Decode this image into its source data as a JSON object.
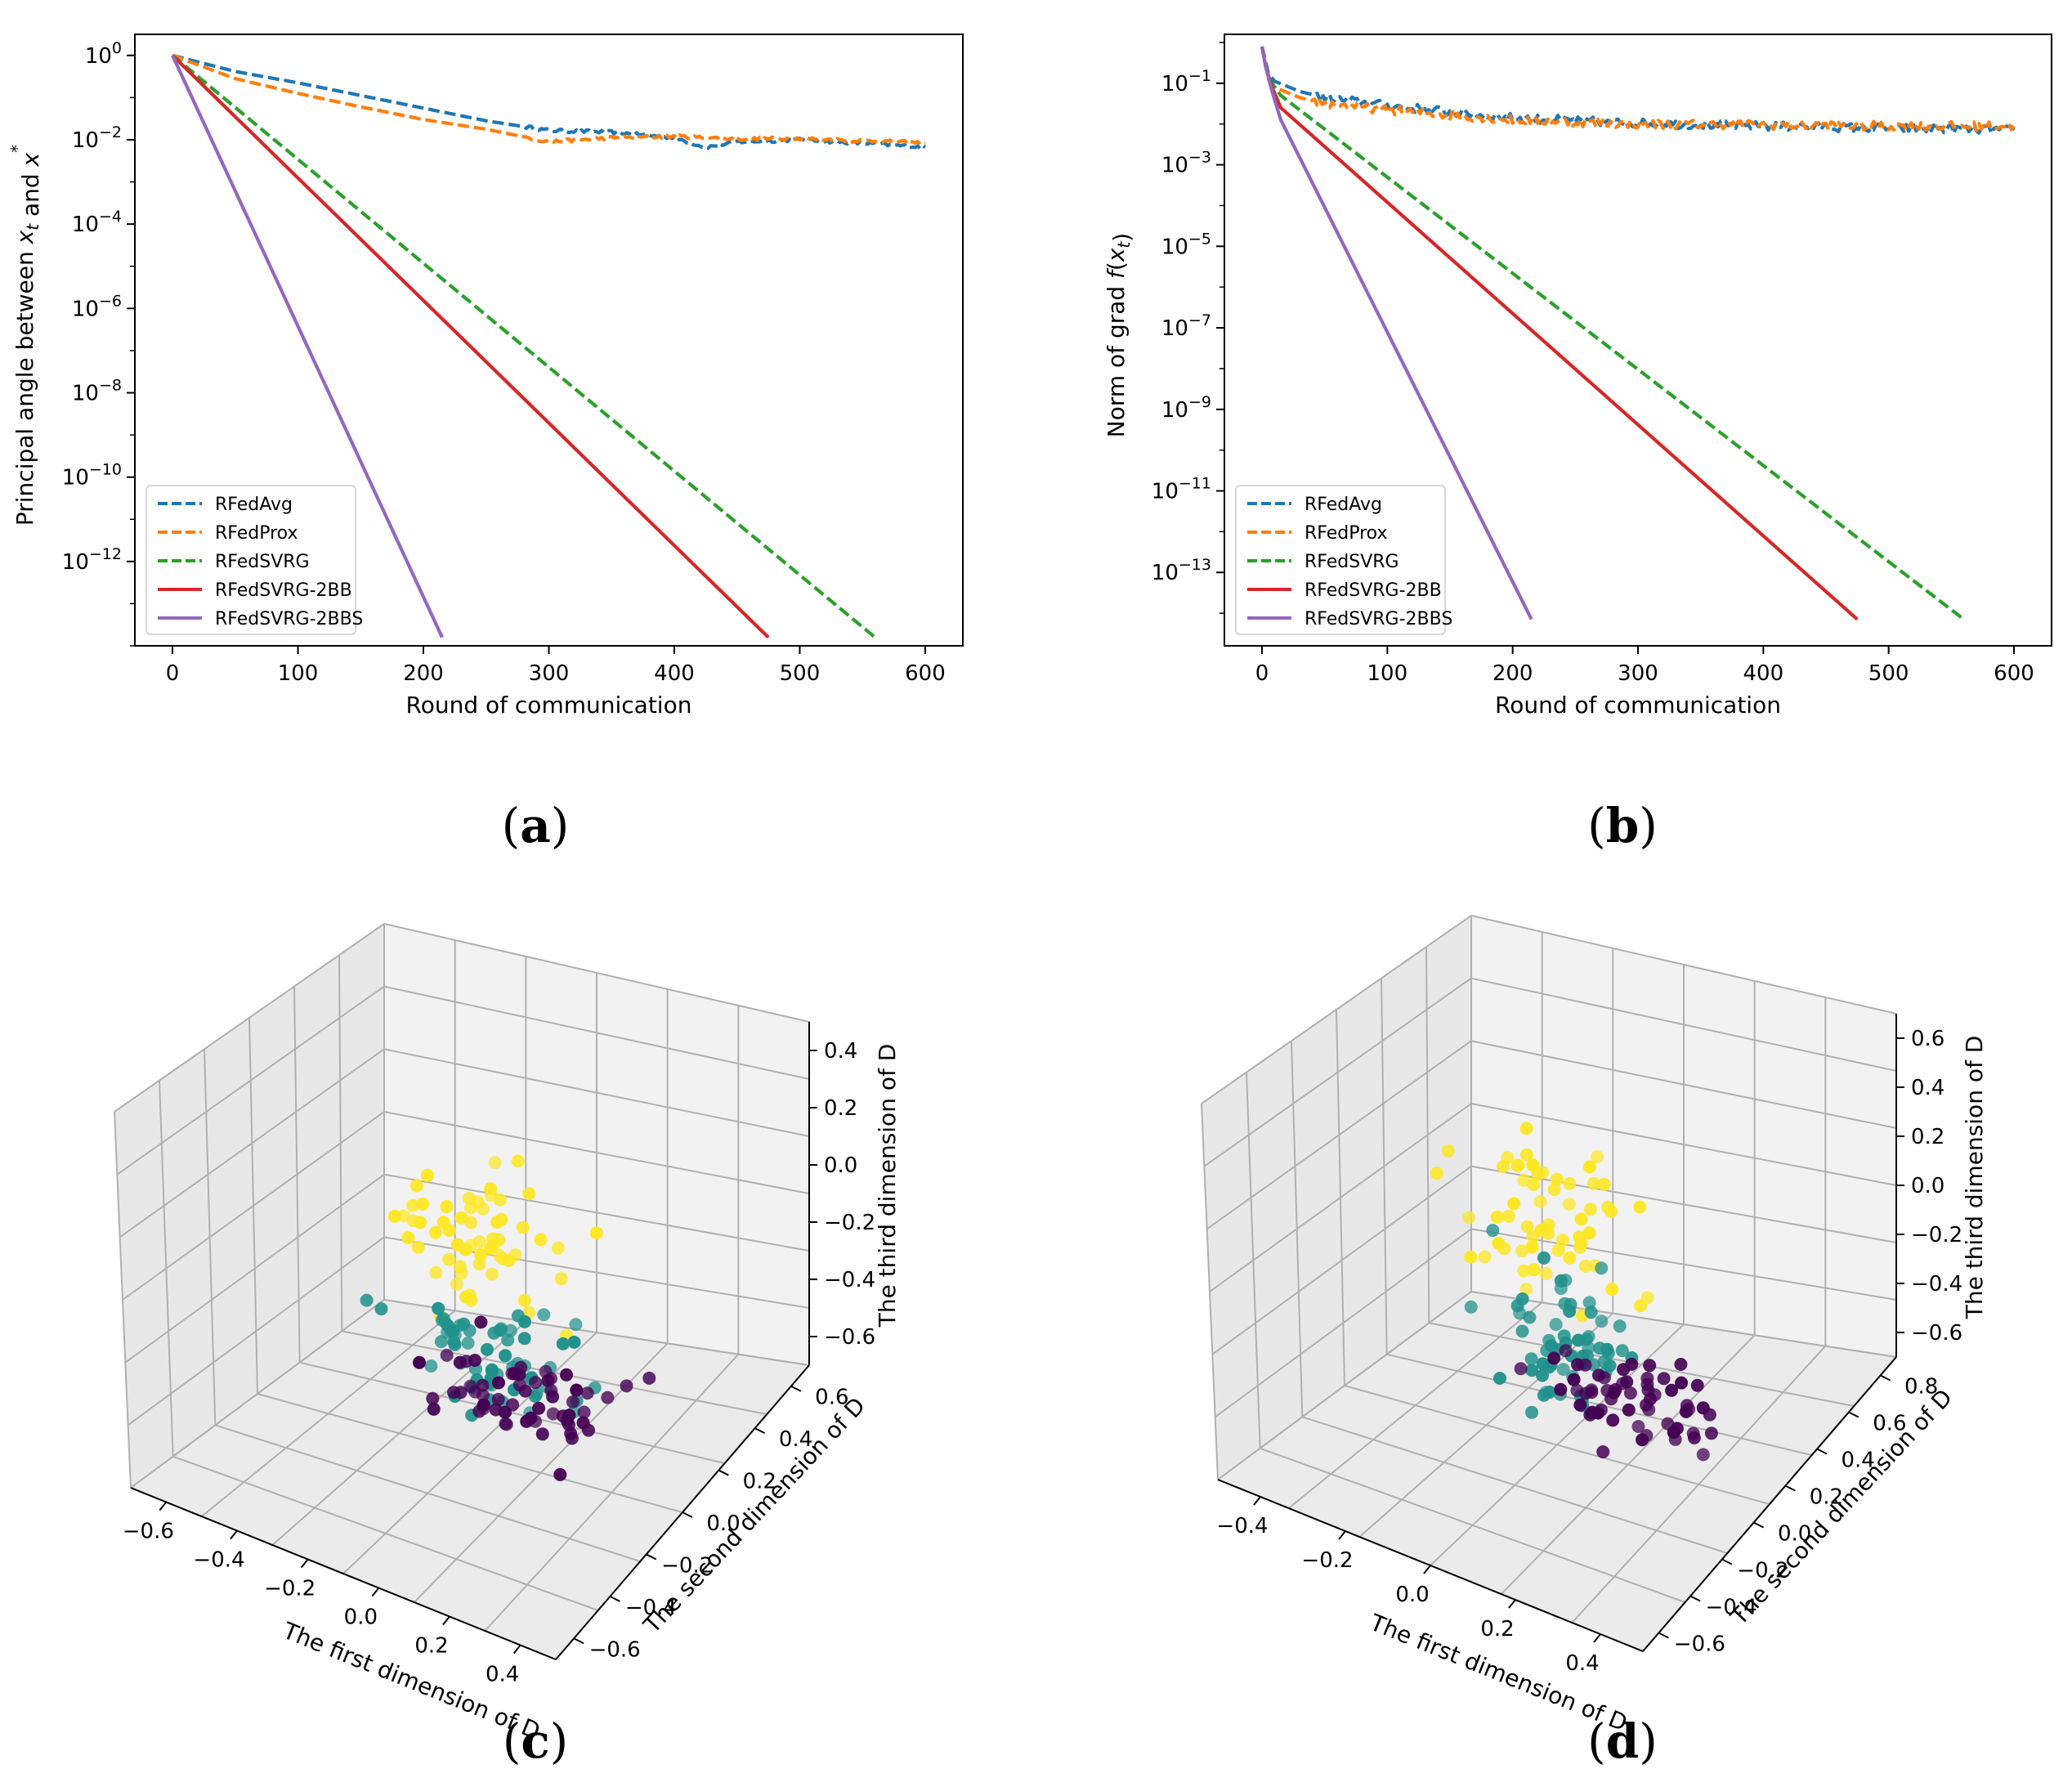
{
  "panels": [
    {
      "id": "a",
      "label": "a"
    },
    {
      "id": "b",
      "label": "b"
    },
    {
      "id": "c",
      "label": "c"
    },
    {
      "id": "d",
      "label": "d"
    }
  ],
  "series_styles": [
    {
      "name": "RFedAvg",
      "color": "#1f77b4",
      "dash": true
    },
    {
      "name": "RFedProx",
      "color": "#ff7f0e",
      "dash": true
    },
    {
      "name": "RFedSVRG",
      "color": "#2ca02c",
      "dash": true
    },
    {
      "name": "RFedSVRG-2BB",
      "color": "#d62728",
      "dash": false
    },
    {
      "name": "RFedSVRG-2BBS",
      "color": "#9467bd",
      "dash": false
    }
  ],
  "chart_data": [
    {
      "id": "a",
      "type": "line",
      "yscale": "log",
      "xlabel": "Round of communication",
      "ylabel": "Principal angle between x_t and x*",
      "ylabel_parts": [
        "Principal angle between ",
        "x",
        "t",
        " and ",
        "x",
        "*"
      ],
      "xlim": [
        -30,
        630
      ],
      "ylim_log10": [
        -14,
        0.5
      ],
      "xticks": [
        0,
        100,
        200,
        300,
        400,
        500,
        600
      ],
      "yticks_log10": [
        0,
        -2,
        -4,
        -6,
        -8,
        -10,
        -12
      ],
      "legend": "lower-left",
      "series": [
        {
          "name": "RFedAvg",
          "x": [
            0,
            50,
            100,
            150,
            200,
            250,
            300,
            350,
            400,
            425,
            450,
            500,
            550,
            600
          ],
          "log10_y": [
            0,
            -0.38,
            -0.65,
            -0.95,
            -1.25,
            -1.55,
            -1.78,
            -1.82,
            -1.95,
            -2.18,
            -2.05,
            -2.0,
            -2.08,
            -2.18
          ]
        },
        {
          "name": "RFedProx",
          "x": [
            0,
            50,
            100,
            150,
            200,
            250,
            300,
            350,
            400,
            450,
            500,
            550,
            600
          ],
          "log10_y": [
            0,
            -0.55,
            -0.9,
            -1.22,
            -1.52,
            -1.75,
            -2.05,
            -1.95,
            -1.92,
            -1.98,
            -1.97,
            -2.02,
            -2.08
          ]
        },
        {
          "name": "RFedSVRG",
          "x": [
            0,
            560
          ],
          "log10_y": [
            0,
            -13.8
          ]
        },
        {
          "name": "RFedSVRG-2BB",
          "x": [
            0,
            475
          ],
          "log10_y": [
            0,
            -13.8
          ]
        },
        {
          "name": "RFedSVRG-2BBS",
          "x": [
            0,
            215
          ],
          "log10_y": [
            0,
            -13.8
          ]
        }
      ]
    },
    {
      "id": "b",
      "type": "line",
      "yscale": "log",
      "xlabel": "Round of communication",
      "ylabel": "Norm of grad f(x_t)",
      "ylabel_parts": [
        "Norm of grad ",
        "f",
        "(",
        "x",
        "t",
        ")"
      ],
      "xlim": [
        -30,
        630
      ],
      "ylim_log10": [
        -14.8,
        0.2
      ],
      "xticks": [
        0,
        100,
        200,
        300,
        400,
        500,
        600
      ],
      "yticks_log10": [
        -1,
        -3,
        -5,
        -7,
        -9,
        -11,
        -13
      ],
      "legend": "lower-left",
      "series": [
        {
          "name": "RFedAvg",
          "x": [
            0,
            5,
            10,
            30,
            50,
            100,
            150,
            200,
            300,
            400,
            500,
            600
          ],
          "log10_y": [
            -0.1,
            -0.75,
            -0.95,
            -1.2,
            -1.35,
            -1.55,
            -1.7,
            -1.85,
            -1.98,
            -2.05,
            -2.1,
            -2.15
          ]
        },
        {
          "name": "RFedProx",
          "x": [
            0,
            5,
            10,
            30,
            50,
            100,
            150,
            200,
            300,
            400,
            500,
            600
          ],
          "log10_y": [
            -0.1,
            -0.9,
            -1.1,
            -1.35,
            -1.5,
            -1.65,
            -1.78,
            -1.9,
            -2.0,
            -2.02,
            -2.05,
            -2.05
          ]
        },
        {
          "name": "RFedSVRG",
          "x": [
            0,
            3,
            8,
            15,
            560
          ],
          "log10_y": [
            -0.1,
            -0.6,
            -1.0,
            -1.3,
            -14.15
          ]
        },
        {
          "name": "RFedSVRG-2BB",
          "x": [
            0,
            3,
            8,
            15,
            475
          ],
          "log10_y": [
            -0.1,
            -0.6,
            -1.1,
            -1.6,
            -14.15
          ]
        },
        {
          "name": "RFedSVRG-2BBS",
          "x": [
            0,
            3,
            8,
            15,
            215
          ],
          "log10_y": [
            -0.1,
            -0.6,
            -1.2,
            -1.9,
            -14.15
          ]
        }
      ]
    },
    {
      "id": "c",
      "type": "scatter",
      "projection": "3d",
      "xlabel": "The first dimension of D",
      "ylabel": "The second dimension of D",
      "zlabel": "The third dimension of D",
      "xticks": [
        "−0.6",
        "−0.4",
        "−0.2",
        "0.0",
        "0.2",
        "0.4"
      ],
      "yticks": [
        "−0.6",
        "−0.4",
        "−0.2",
        "0.0",
        "0.2",
        "0.4",
        "0.6"
      ],
      "zticks": [
        "0.4",
        "0.2",
        "0.0",
        "−0.2",
        "−0.4",
        "−0.6"
      ],
      "clusters": [
        {
          "name": "cluster-yellow",
          "color": "#fde725",
          "center": [
            0.0,
            0.15,
            0.25
          ],
          "spread": [
            0.12,
            0.12,
            0.12
          ],
          "count": 60
        },
        {
          "name": "cluster-teal",
          "color": "#21918c",
          "center": [
            0.05,
            0.2,
            -0.1
          ],
          "spread": [
            0.1,
            0.1,
            0.1
          ],
          "count": 60
        },
        {
          "name": "cluster-purple",
          "color": "#440154",
          "center": [
            -0.05,
            -0.3,
            -0.5
          ],
          "spread": [
            0.12,
            0.12,
            0.05
          ],
          "count": 60
        }
      ]
    },
    {
      "id": "d",
      "type": "scatter",
      "projection": "3d",
      "xlabel": "The first dimension of D",
      "ylabel": "The second dimension of D",
      "zlabel": "The third dimension of D",
      "xticks": [
        "−0.4",
        "−0.2",
        "0.0",
        "0.2",
        "0.4"
      ],
      "yticks": [
        "−0.6",
        "−0.4",
        "−0.2",
        "0.0",
        "0.2",
        "0.4",
        "0.6",
        "0.8"
      ],
      "zticks": [
        "0.6",
        "0.4",
        "0.2",
        "0.0",
        "−0.2",
        "−0.4",
        "−0.6"
      ],
      "clusters": [
        {
          "name": "cluster-yellow",
          "color": "#fde725",
          "center": [
            0.0,
            0.2,
            0.3
          ],
          "spread": [
            0.12,
            0.12,
            0.14
          ],
          "count": 60
        },
        {
          "name": "cluster-teal",
          "color": "#21918c",
          "center": [
            0.05,
            0.25,
            -0.1
          ],
          "spread": [
            0.1,
            0.1,
            0.1
          ],
          "count": 60
        },
        {
          "name": "cluster-purple",
          "color": "#440154",
          "center": [
            -0.05,
            -0.35,
            -0.55
          ],
          "spread": [
            0.12,
            0.12,
            0.05
          ],
          "count": 60
        }
      ]
    }
  ]
}
